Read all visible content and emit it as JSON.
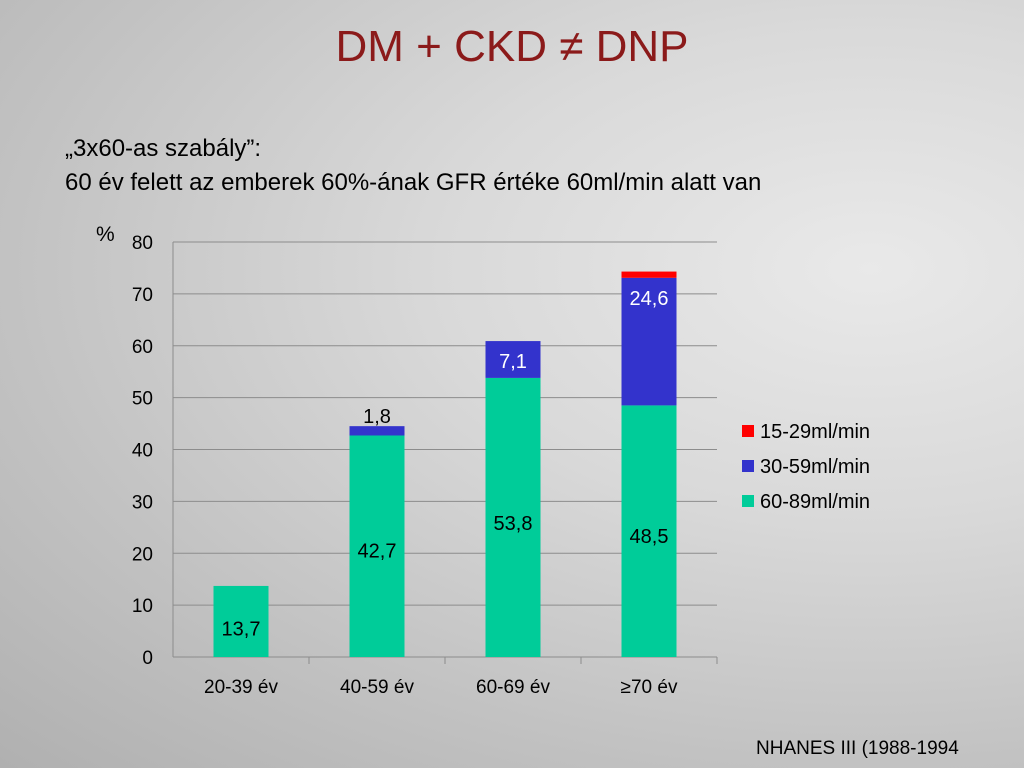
{
  "slide": {
    "title": "DM + CKD ≠ DNP",
    "subtitle_line1": "„3x60-as szabály”:",
    "subtitle_line2": "60 év felett az emberek 60%-ának GFR értéke 60ml/min alatt van",
    "source": "NHANES III (1988-1994"
  },
  "chart_data": {
    "type": "bar",
    "stacked": true,
    "unit_label": "%",
    "categories": [
      "20-39 év",
      "40-59 év",
      "60-69 év",
      "≥70 év"
    ],
    "series": [
      {
        "name": "60-89ml/min",
        "color": "#00cc99",
        "values": [
          13.7,
          42.7,
          53.8,
          48.5
        ],
        "labels": [
          "13,7",
          "42,7",
          "53,8",
          "48,5"
        ]
      },
      {
        "name": "30-59ml/min",
        "color": "#3333cc",
        "values": [
          0,
          1.8,
          7.1,
          24.6
        ],
        "labels": [
          "",
          "1,8",
          "7,1",
          "24,6"
        ]
      },
      {
        "name": "15-29ml/min",
        "color": "#ff0000",
        "values": [
          0,
          0,
          0,
          1.2
        ],
        "labels": [
          "",
          "",
          "",
          ""
        ]
      }
    ],
    "ylim": [
      0,
      80
    ],
    "yticks": [
      0,
      10,
      20,
      30,
      40,
      50,
      60,
      70,
      80
    ],
    "grid": true,
    "legend": [
      "15-29ml/min",
      "30-59ml/min",
      "60-89ml/min"
    ],
    "legend_position": "right"
  }
}
